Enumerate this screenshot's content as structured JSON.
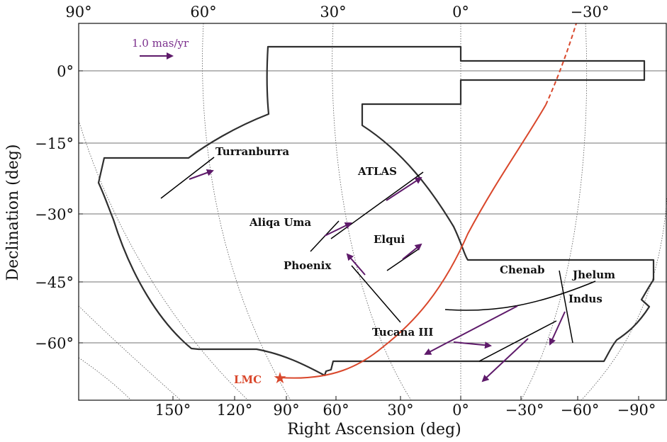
{
  "colors": {
    "arrow": "#5e1a6a",
    "scale_text": "#7b2f8c",
    "orbit": "#d9472b",
    "footprint": "#2f2f2f",
    "stream_track": "#000000",
    "grid": "#444444"
  },
  "chart_data": {
    "type": "line",
    "xlabel": "Right Ascension (deg)",
    "ylabel": "Declination (deg)",
    "ra_tick_labels": [
      "150°",
      "120°",
      "90°",
      "60°",
      "30°",
      "0°",
      "−30°",
      "−60°",
      "−90°"
    ],
    "top_tick_labels": [
      "90°",
      "60°",
      "30°",
      "0°",
      "−30°"
    ],
    "dec_tick_labels": [
      "0°",
      "−15°",
      "−30°",
      "−45°",
      "−60°"
    ],
    "dec_ticks": [
      0,
      -15,
      -30,
      -45,
      -60
    ],
    "ra_ticks": [
      150,
      120,
      90,
      60,
      30,
      0,
      -30,
      -60,
      -90
    ],
    "grid": true,
    "proper_motion_scale": {
      "label": "1.0 mas/yr",
      "value_mas_per_yr": 1.0
    },
    "streams": [
      {
        "name": "Turranburra"
      },
      {
        "name": "ATLAS"
      },
      {
        "name": "Aliqa Uma"
      },
      {
        "name": "Phoenix"
      },
      {
        "name": "Elqui"
      },
      {
        "name": "Tucana III"
      },
      {
        "name": "Chenab"
      },
      {
        "name": "Jhelum"
      },
      {
        "name": "Indus"
      }
    ],
    "lmc": {
      "label": "LMC",
      "ra": 81,
      "dec": -69
    },
    "annotations": [
      "LMC"
    ]
  }
}
